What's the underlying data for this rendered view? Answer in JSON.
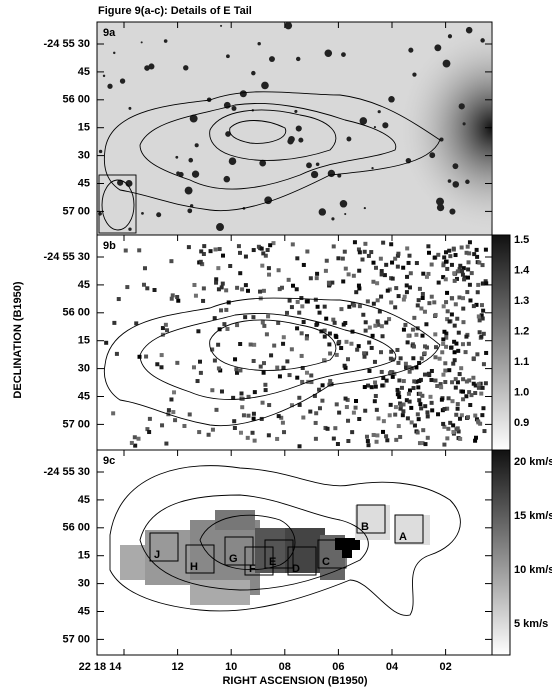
{
  "figure": {
    "title": "Figure 9(a-c): Details of E Tail",
    "y_axis_title": "DECLINATION (B1950)",
    "x_axis_title": "RIGHT ASCENSION (B1950)",
    "panels": [
      {
        "label": "9a",
        "yticks": [
          "-24 55 30",
          "45",
          "56 00",
          "15",
          "30",
          "45",
          "57 00"
        ]
      },
      {
        "label": "9b",
        "yticks": [
          "-24 55 30",
          "45",
          "56 00",
          "15",
          "30",
          "45",
          "57 00"
        ],
        "colorbar": [
          "1.5",
          "1.4",
          "1.3",
          "1.2",
          "1.1",
          "1.0",
          "0.9"
        ]
      },
      {
        "label": "9c",
        "yticks": [
          "-24 55 30",
          "45",
          "56 00",
          "15",
          "30",
          "45",
          "57 00"
        ],
        "colorbar": [
          "20 km/s",
          "15 km/s",
          "10 km/s",
          "5 km/s"
        ],
        "boxes": [
          "J",
          "H",
          "G",
          "F",
          "E",
          "D",
          "C",
          "B",
          "A"
        ]
      }
    ],
    "xticks": [
      "22 18 14",
      "12",
      "10",
      "08",
      "06",
      "04",
      "02"
    ]
  }
}
